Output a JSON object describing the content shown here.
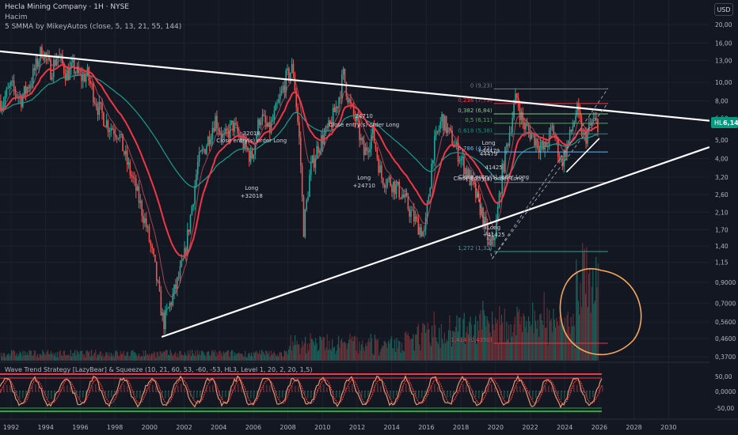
{
  "header": {
    "symbol_line": "Hecla Mining Company · 1H · NYSE",
    "volume_label": "Hacim",
    "ma_label": "5 SMMA by MikeyAutos (close, 5, 13, 21, 55, 144)",
    "oscillator_label": "Wave Trend Strategy [LazyBear] & Squeeze (10, 21, 60, 53, -60, -53, HL3, Level 1, 20, 2, 20, 1,5)"
  },
  "currency_button": "USD",
  "price_badge": {
    "ticker": "HL",
    "value": "6,14"
  },
  "colors": {
    "background": "#131722",
    "grid": "#1e222d",
    "up_candle": "#26a69a",
    "down_candle": "#ef5350",
    "fast_ma": "#f23645",
    "slow_ma": "#1a9e8f",
    "trendline": "#ffffff",
    "annotation_circle": "#f5a65b",
    "osc_upper": "#f23645",
    "osc_lower": "#22ab45",
    "badge": "#089981"
  },
  "chart_data": {
    "type": "candlestick",
    "title": "Hecla Mining Company · 1H · NYSE",
    "x_ticks": [
      "1992",
      "1994",
      "1996",
      "1998",
      "2000",
      "2002",
      "2004",
      "2006",
      "2008",
      "2010",
      "2012",
      "2014",
      "2016",
      "2018",
      "2020",
      "2022",
      "2024",
      "2026",
      "2028",
      "2030"
    ],
    "y_scale": "log",
    "y_ticks": [
      "20,00",
      "16,00",
      "13,00",
      "10,00",
      "8,00",
      "6,50",
      "5,00",
      "4,00",
      "3,20",
      "2,60",
      "2,10",
      "1,70",
      "1,40",
      "1,15",
      "0,9000",
      "0,7000",
      "0,5600",
      "0,4600",
      "0,3700"
    ],
    "osc_ticks": [
      "50,00",
      "0,0000",
      "-50,00"
    ],
    "last_price": 6.14,
    "fib_levels": [
      {
        "label": "0 (9,23)",
        "value": 9.23
      },
      {
        "label": "0,236 (7,75)",
        "value": 7.75
      },
      {
        "label": "0,382 (6,84)",
        "value": 6.84
      },
      {
        "label": "0,5 (6,11)",
        "value": 6.11
      },
      {
        "label": "0,618 (5,38)",
        "value": 5.38
      },
      {
        "label": "0,786 (4,33)",
        "value": 4.33
      },
      {
        "label": "1 (3,00)",
        "value": 3.0
      },
      {
        "label": "1,272 (1,32)",
        "value": 1.32
      },
      {
        "label": "1,414 (0,4350)",
        "value": 0.435
      }
    ],
    "trades": [
      {
        "label_top": "32018",
        "label_mid": "Close entry(s) order Long",
        "label_bottom": "Long",
        "label_bottom2": "+32018",
        "year": 2005.9
      },
      {
        "label_top": "24710",
        "label_mid": "Close entry(s) order Long",
        "label_bottom": "Long",
        "label_bottom2": "+24710",
        "year": 2012.4
      },
      {
        "label_top": "44479",
        "label_mid": "Close entry(s) order Long",
        "label_bottom": "Long",
        "label_bottom2": "+44479",
        "year": 2019.6
      },
      {
        "label_top": "41425",
        "label_mid": "Close entry(s) order Long",
        "label_bottom": "Long",
        "label_bottom2": "+41425",
        "year": 2019.9
      }
    ],
    "price_path": [
      [
        1991.5,
        8.0
      ],
      [
        1992.0,
        9.5
      ],
      [
        1992.6,
        8.2
      ],
      [
        1993.2,
        10.5
      ],
      [
        1993.8,
        15.0
      ],
      [
        1994.3,
        11.5
      ],
      [
        1994.7,
        14.0
      ],
      [
        1995.2,
        11.0
      ],
      [
        1995.6,
        12.0
      ],
      [
        1996.0,
        10.5
      ],
      [
        1996.4,
        11.0
      ],
      [
        1997.0,
        7.5
      ],
      [
        1997.6,
        6.0
      ],
      [
        1998.2,
        5.5
      ],
      [
        1998.7,
        3.8
      ],
      [
        1999.2,
        2.8
      ],
      [
        1999.8,
        1.8
      ],
      [
        2000.3,
        1.1
      ],
      [
        2000.8,
        0.55
      ],
      [
        2001.2,
        0.7
      ],
      [
        2001.6,
        0.9
      ],
      [
        2002.0,
        1.2
      ],
      [
        2002.4,
        2.1
      ],
      [
        2002.8,
        3.8
      ],
      [
        2003.3,
        4.8
      ],
      [
        2003.8,
        6.5
      ],
      [
        2004.3,
        5.0
      ],
      [
        2004.8,
        6.0
      ],
      [
        2005.4,
        4.8
      ],
      [
        2005.9,
        4.0
      ],
      [
        2006.4,
        6.8
      ],
      [
        2006.9,
        5.5
      ],
      [
        2007.4,
        7.5
      ],
      [
        2007.9,
        10.5
      ],
      [
        2008.3,
        12.0
      ],
      [
        2008.7,
        4.5
      ],
      [
        2008.9,
        1.7
      ],
      [
        2009.3,
        3.5
      ],
      [
        2009.8,
        4.8
      ],
      [
        2010.4,
        5.8
      ],
      [
        2010.9,
        8.0
      ],
      [
        2011.2,
        11.0
      ],
      [
        2011.6,
        7.5
      ],
      [
        2012.0,
        6.0
      ],
      [
        2012.4,
        4.2
      ],
      [
        2012.9,
        5.5
      ],
      [
        2013.4,
        3.2
      ],
      [
        2014.0,
        3.0
      ],
      [
        2014.6,
        2.6
      ],
      [
        2015.2,
        2.0
      ],
      [
        2015.9,
        1.6
      ],
      [
        2016.4,
        4.5
      ],
      [
        2016.9,
        6.5
      ],
      [
        2017.4,
        5.2
      ],
      [
        2018.0,
        4.0
      ],
      [
        2018.6,
        3.0
      ],
      [
        2019.2,
        2.1
      ],
      [
        2019.7,
        1.35
      ],
      [
        2020.0,
        1.7
      ],
      [
        2020.4,
        3.5
      ],
      [
        2020.8,
        5.5
      ],
      [
        2021.2,
        8.5
      ],
      [
        2021.6,
        6.0
      ],
      [
        2022.2,
        5.2
      ],
      [
        2022.8,
        4.4
      ],
      [
        2023.3,
        5.8
      ],
      [
        2023.8,
        3.8
      ],
      [
        2024.3,
        5.2
      ],
      [
        2024.7,
        7.2
      ],
      [
        2025.1,
        5.0
      ],
      [
        2025.6,
        6.2
      ],
      [
        2025.9,
        6.14
      ]
    ],
    "volume_peak_year": 2025.4,
    "legend": "none"
  }
}
